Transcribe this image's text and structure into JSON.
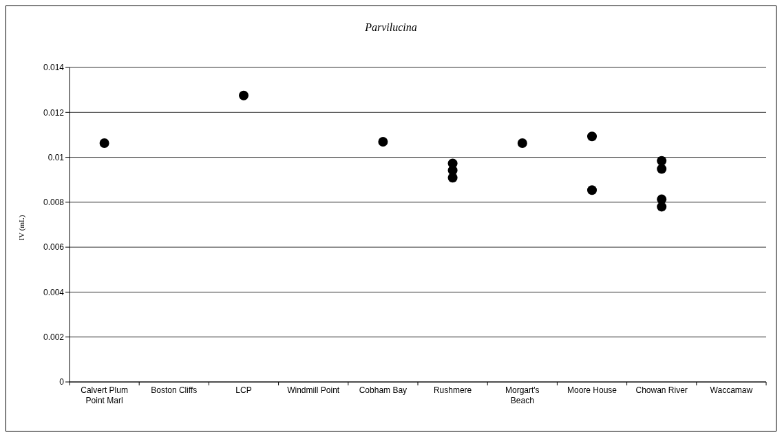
{
  "chart_data": {
    "type": "scatter",
    "title": "Parvilucina",
    "ylabel": "IV (mL)",
    "categories": [
      "Calvert Plum Point Marl",
      "Boston Cliffs",
      "LCP",
      "Windmill Point",
      "Cobham Bay",
      "Rushmere",
      "Morgart's Beach",
      "Moore House",
      "Chowan River",
      "Waccamaw"
    ],
    "series": [
      {
        "color": "#000000",
        "x": [
          "Calvert Plum Point Marl",
          "LCP",
          "Cobham Bay",
          "Rushmere",
          "Rushmere",
          "Rushmere",
          "Morgart's Beach",
          "Moore House",
          "Moore House",
          "Chowan River",
          "Chowan River",
          "Chowan River",
          "Chowan River"
        ],
        "values": [
          0.01063,
          0.01275,
          0.01069,
          0.00973,
          0.00942,
          0.00909,
          0.01063,
          0.01093,
          0.00854,
          0.00984,
          0.00948,
          0.00813,
          0.0078
        ]
      }
    ],
    "ylim": [
      0,
      0.014
    ],
    "yticks": [
      0,
      0.002,
      0.004,
      0.006,
      0.008,
      0.01,
      0.012,
      0.014
    ],
    "grid": "y",
    "marker": "circle",
    "legend": false
  }
}
